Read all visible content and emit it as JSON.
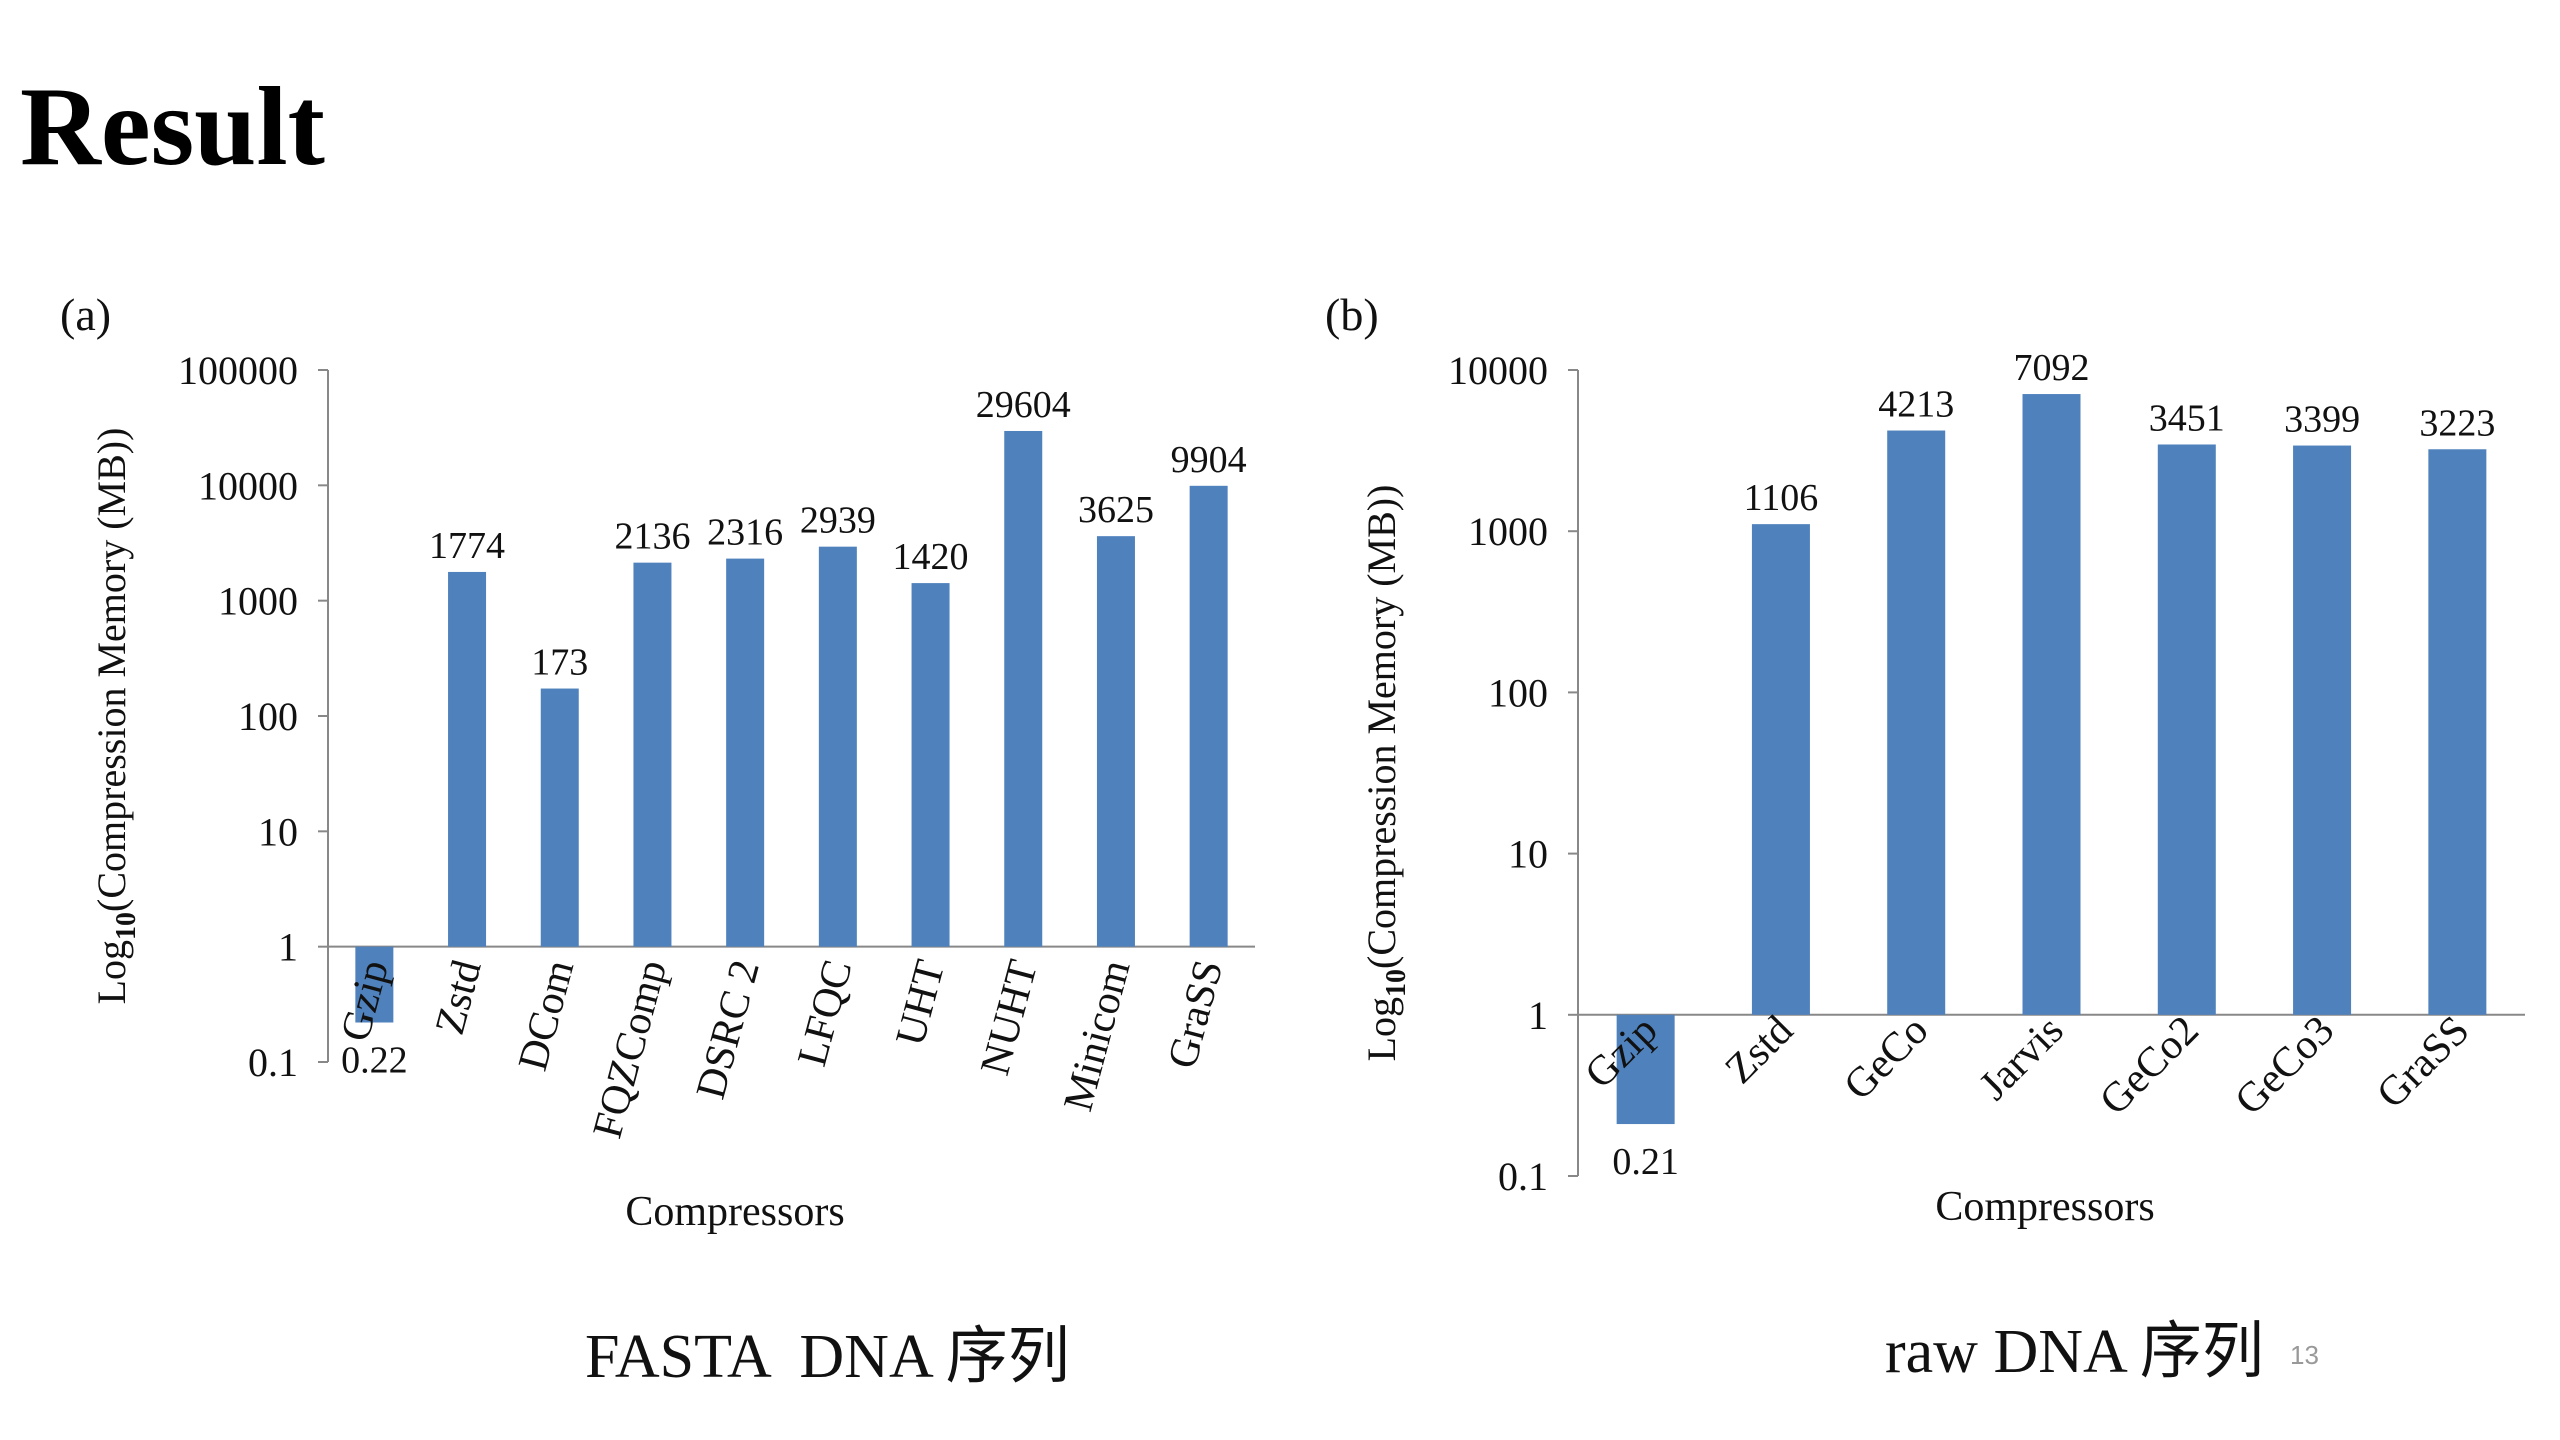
{
  "slide": {
    "title": "Result",
    "page_number": "13"
  },
  "chart_data": [
    {
      "type": "bar",
      "panel_label": "(a)",
      "caption": "FASTA  DNA 序列",
      "xlabel": "Compressors",
      "ylabel_prefix": "Log",
      "ylabel_sub": "10",
      "ylabel_suffix": "(Compression Memory (MB))",
      "yscale": "log",
      "ylim": [
        0.1,
        100000
      ],
      "yticks": [
        0.1,
        1,
        10,
        100,
        1000,
        10000,
        100000
      ],
      "ytick_labels": [
        "0.1",
        "1",
        "10",
        "100",
        "1000",
        "10000",
        "100000"
      ],
      "baseline": 1,
      "grid": false,
      "bar_color": "#4f81bd",
      "categories": [
        "Gzip",
        "Zstd",
        "DCom",
        "FQZComp",
        "DSRC 2",
        "LFQC",
        "UHT",
        "NUHT",
        "Minicom",
        "GraSS"
      ],
      "values": [
        0.22,
        1774,
        173,
        2136,
        2316,
        2939,
        1420,
        29604,
        3625,
        9904
      ],
      "data_labels": [
        "0.22",
        "1774",
        "173",
        "2136",
        "2316",
        "2939",
        "1420",
        "29604",
        "3625",
        "9904"
      ]
    },
    {
      "type": "bar",
      "panel_label": "(b)",
      "caption": "raw DNA 序列",
      "xlabel": "Compressors",
      "ylabel_prefix": "Log",
      "ylabel_sub": "10",
      "ylabel_suffix": "(Compression Memory (MB))",
      "yscale": "log",
      "ylim": [
        0.1,
        10000
      ],
      "yticks": [
        0.1,
        1,
        10,
        100,
        1000,
        10000
      ],
      "ytick_labels": [
        "0.1",
        "1",
        "10",
        "100",
        "1000",
        "10000"
      ],
      "baseline": 1,
      "grid": false,
      "bar_color": "#4f81bd",
      "categories": [
        "Gzip",
        "Zstd",
        "GeCo",
        "Jarvis",
        "GeCo2",
        "GeCo3",
        "GraSS"
      ],
      "values": [
        0.21,
        1106,
        4213,
        7092,
        3451,
        3399,
        3223
      ],
      "data_labels": [
        "0.21",
        "1106",
        "4213",
        "7092",
        "3451",
        "3399",
        "3223"
      ]
    }
  ]
}
